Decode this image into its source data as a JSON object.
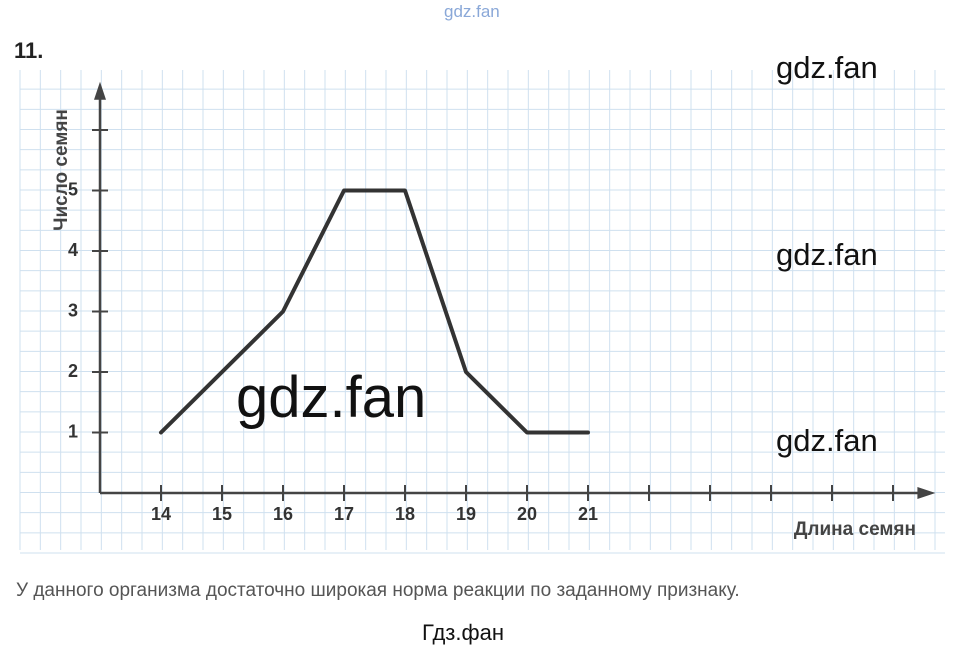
{
  "problem_number": "11.",
  "watermarks": [
    "gdz.fan",
    "gdz.fan",
    "gdz.fan",
    "gdz.fan",
    "gdz.fan"
  ],
  "caption": "У данного организма достаточно широкая норма реакции по заданному признаку.",
  "footer": "Гдз.фан",
  "chart_data": {
    "type": "line",
    "x_label": "Длина семян",
    "y_label": "Число семян",
    "x": [
      14,
      16,
      17,
      18,
      19,
      20,
      21
    ],
    "series": [
      {
        "name": "Число семян",
        "color": "#333333",
        "values": [
          1,
          3,
          5,
          5,
          2,
          1,
          1
        ]
      }
    ],
    "xlim": [
      13,
      26.4
    ],
    "ylim": [
      0,
      6.5
    ],
    "xticks": [
      14,
      15,
      16,
      17,
      18,
      19,
      20,
      21
    ],
    "xticks_unlabeled": [
      22,
      23,
      24,
      25,
      26
    ],
    "yticks": [
      1,
      2,
      3,
      4,
      5
    ],
    "yticks_unlabeled": [
      6
    ],
    "grid": true
  }
}
